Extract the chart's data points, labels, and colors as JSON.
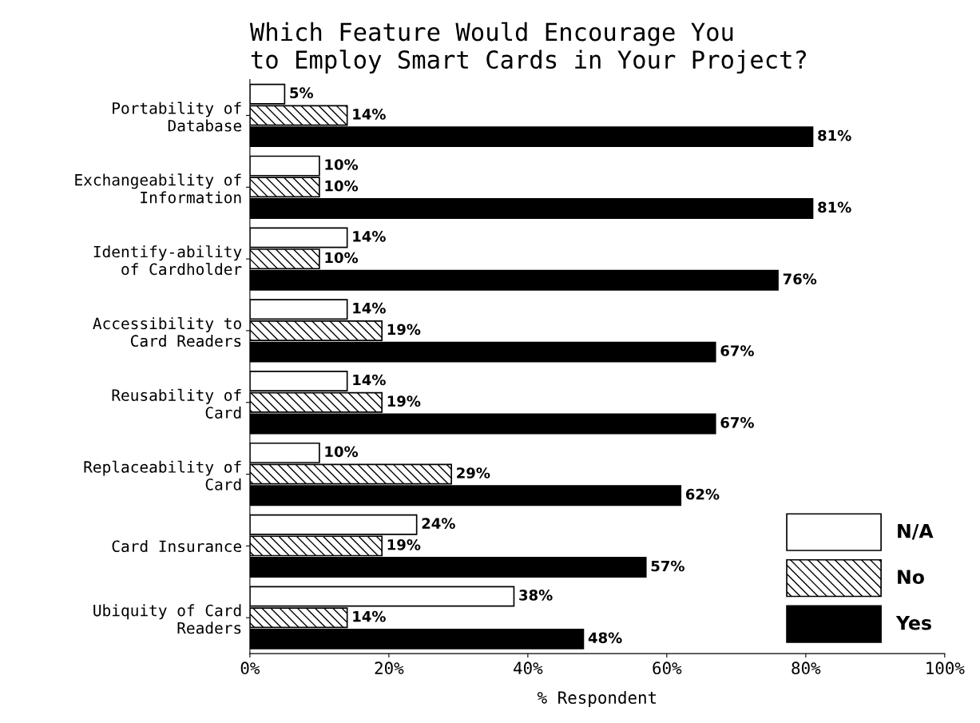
{
  "chart_data": {
    "type": "bar",
    "orientation": "horizontal",
    "title": "Which Feature Would Encourage You\nto Employ Smart Cards in Your Project?",
    "xlabel": "% Respondent",
    "categories": [
      "Portability of\nDatabase",
      "Exchangeability of\nInformation",
      "Identify-ability\nof Cardholder",
      "Accessibility to\nCard Readers",
      "Reusability of\nCard",
      "Replaceability of\nCard",
      "Card Insurance",
      "Ubiquity of Card\nReaders"
    ],
    "series": [
      {
        "name": "N/A",
        "color": "#ffffff",
        "values": [
          5,
          10,
          14,
          14,
          14,
          10,
          24,
          38
        ],
        "value_labels": [
          "5%",
          "10%",
          "14%",
          "14%",
          "14%",
          "10%",
          "24%",
          "38%"
        ]
      },
      {
        "name": "No",
        "color": "#000000",
        "values": [
          14,
          10,
          10,
          19,
          19,
          29,
          19,
          14
        ],
        "value_labels": [
          "14%",
          "10%",
          "10%",
          "19%",
          "19%",
          "29%",
          "19%",
          "14%"
        ]
      },
      {
        "name": "Yes",
        "color": "#000000",
        "values": [
          81,
          81,
          76,
          67,
          67,
          62,
          57,
          48
        ],
        "value_labels": [
          "81%",
          "81%",
          "76%",
          "67%",
          "67%",
          "62%",
          "57%",
          "48%"
        ]
      }
    ],
    "xlim": [
      0,
      100
    ],
    "xticks": [
      {
        "value": 0,
        "label": "0%"
      },
      {
        "value": 20,
        "label": "20%"
      },
      {
        "value": 40,
        "label": "40%"
      },
      {
        "value": 60,
        "label": "60%"
      },
      {
        "value": 80,
        "label": "80%"
      },
      {
        "value": 100,
        "label": "100%"
      }
    ],
    "legend": "bottom right",
    "grid": false
  }
}
